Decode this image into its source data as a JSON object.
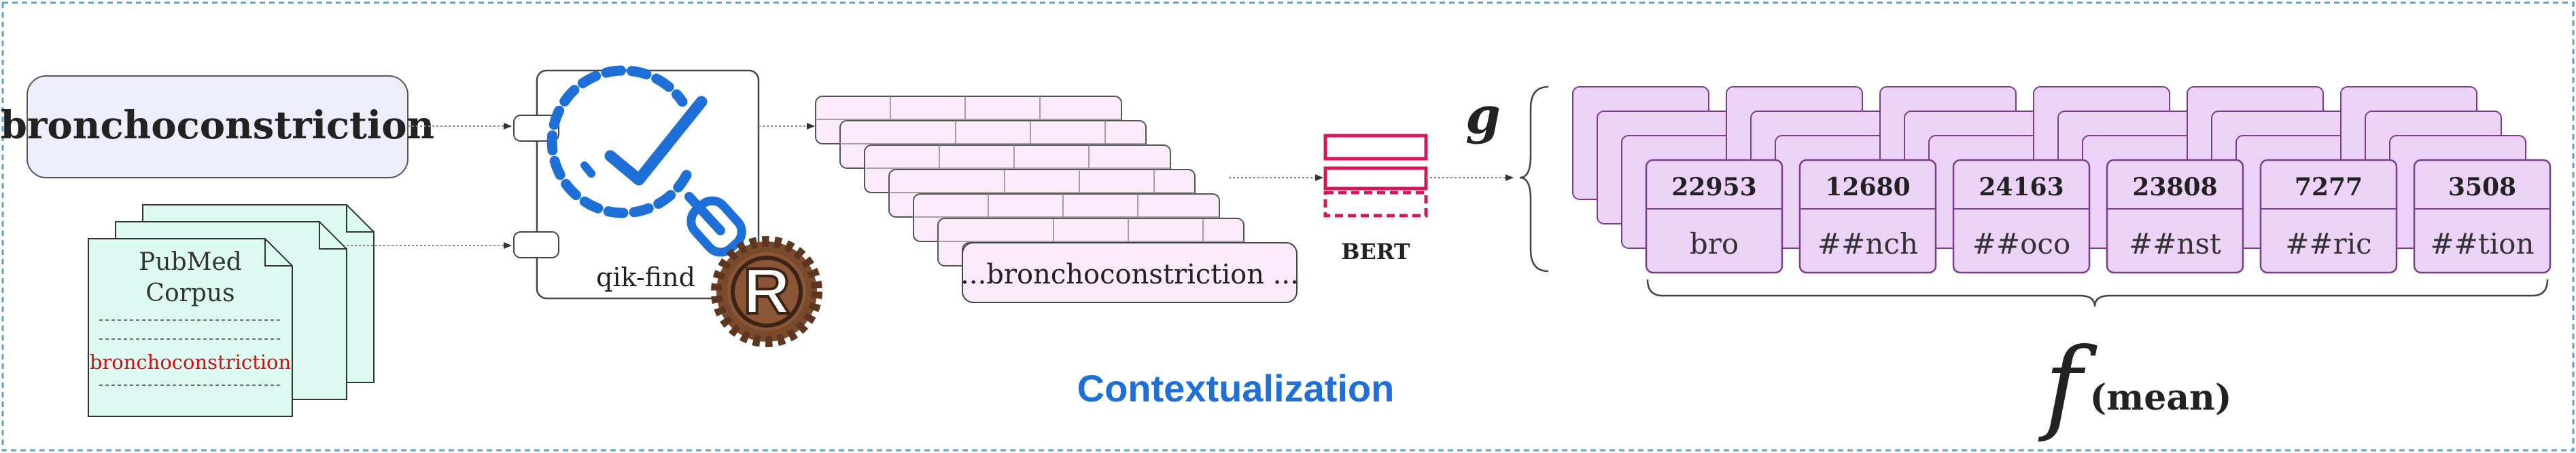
{
  "query": {
    "term": "bronchoconstriction"
  },
  "corpus": {
    "title_line1": "PubMed",
    "title_line2": "Corpus",
    "highlight": "bronchoconstriction"
  },
  "tool": {
    "label": "qik-find",
    "icon": "clock-search-icon",
    "badge": "rust-logo"
  },
  "context": {
    "last_snippet": "...bronchoconstriction ..."
  },
  "model": {
    "label": "BERT",
    "icon": "stacked-layers-icon"
  },
  "section_label": "Contextualization",
  "function_g": "g",
  "function_f": {
    "symbol": "f",
    "subscript": "(mean)"
  },
  "tokens": [
    {
      "id": "22953",
      "piece": "bro"
    },
    {
      "id": "12680",
      "piece": "##nch"
    },
    {
      "id": "24163",
      "piece": "##oco"
    },
    {
      "id": "23808",
      "piece": "##nst"
    },
    {
      "id": "7277",
      "piece": "##ric"
    },
    {
      "id": "3508",
      "piece": "##tion"
    }
  ],
  "colors": {
    "query_fill": "#eeedfb",
    "corpus_fill": "#ddfaf2",
    "highlight": "#d01010",
    "context_fill": "#fbeafa",
    "token_fill": "#ecd2f7",
    "token_stroke": "#7a3f8c",
    "bert": "#d4165c",
    "accent_blue": "#1e6fd8",
    "border_dash": "#5aa0d0"
  }
}
